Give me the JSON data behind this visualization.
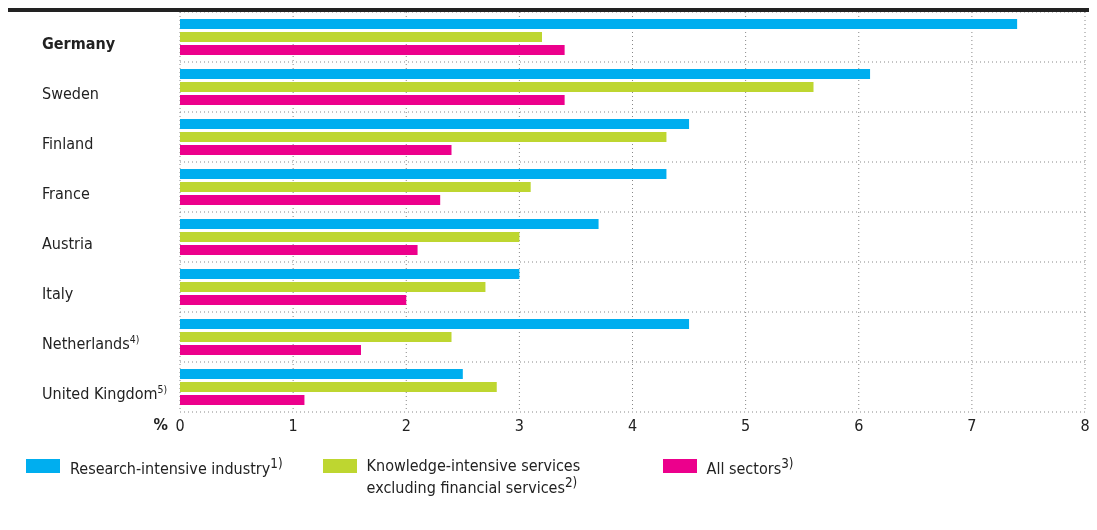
{
  "chart_data": {
    "type": "bar",
    "orientation": "horizontal",
    "xlabel": "%",
    "categories": [
      "Germany",
      "Sweden",
      "Finland",
      "France",
      "Austria",
      "Italy",
      "Netherlands$^{4)}$",
      "United Kingdom$^{5)}$"
    ],
    "series": [
      {
        "name": "Research-intensive industry$^{1)}$",
        "color": "#00aeef",
        "values": [
          7.4,
          6.1,
          4.5,
          4.3,
          3.7,
          3.0,
          4.5,
          2.5
        ]
      },
      {
        "name": "Knowledge-intensive services excluding financial services$^{2)}$",
        "color": "#bed630",
        "values": [
          3.2,
          5.6,
          4.3,
          3.1,
          3.0,
          2.7,
          2.4,
          2.8
        ]
      },
      {
        "name": "All sectors$^{3)}$",
        "color": "#ec008c",
        "values": [
          3.4,
          3.4,
          2.4,
          2.3,
          2.1,
          2.0,
          1.6,
          1.1
        ]
      }
    ],
    "xlim": [
      0,
      8
    ],
    "xticks": [
      0,
      1,
      2,
      3,
      4,
      5,
      6,
      7,
      8
    ],
    "grid": true,
    "legend": "bottom"
  }
}
